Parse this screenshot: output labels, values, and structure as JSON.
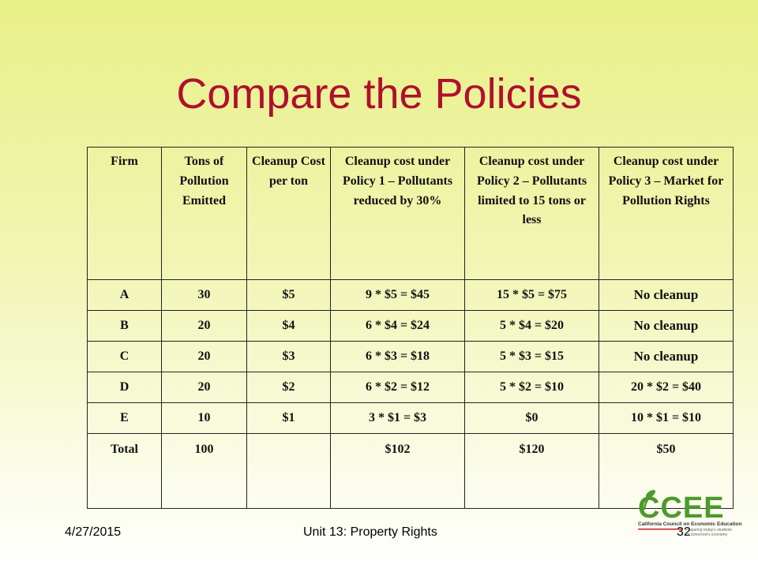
{
  "slide": {
    "title": "Compare the Policies"
  },
  "table": {
    "headers": [
      "Firm",
      "Tons of Pollution Emitted",
      "Cleanup Cost per ton",
      "Cleanup cost under Policy 1 – Pollutants reduced by 30%",
      "Cleanup cost under Policy 2 – Pollutants limited to 15 tons or less",
      "Cleanup cost under Policy 3 – Market for Pollution Rights"
    ],
    "rows": [
      [
        "A",
        "30",
        "$5",
        "9 * $5 = $45",
        "15 * $5 = $75",
        "No cleanup"
      ],
      [
        "B",
        "20",
        "$4",
        "6 * $4 = $24",
        "5 * $4 = $20",
        "No cleanup"
      ],
      [
        "C",
        "20",
        "$3",
        "6 * $3 = $18",
        "5 * $3 = $15",
        "No cleanup"
      ],
      [
        "D",
        "20",
        "$2",
        "6 * $2 = $12",
        "5 * $2 = $10",
        "20 * $2 = $40"
      ],
      [
        "E",
        "10",
        "$1",
        "3 * $1 = $3",
        "$0",
        "10 * $1 = $10"
      ]
    ],
    "total_row": [
      "Total",
      "100",
      "",
      "$102",
      "$120",
      "$50"
    ]
  },
  "footer": {
    "date": "4/27/2015",
    "center": "Unit 13: Property Rights",
    "page": "32"
  },
  "logo": {
    "wordmark": "CCEE",
    "org_name": "California Council on Economic Education",
    "tagline_1": "Preparing today's students",
    "tagline_2": "for tomorrow's economy"
  },
  "colors": {
    "title": "#b0102e",
    "logo_green": "#4d9a2a",
    "logo_red": "#c8202a"
  }
}
